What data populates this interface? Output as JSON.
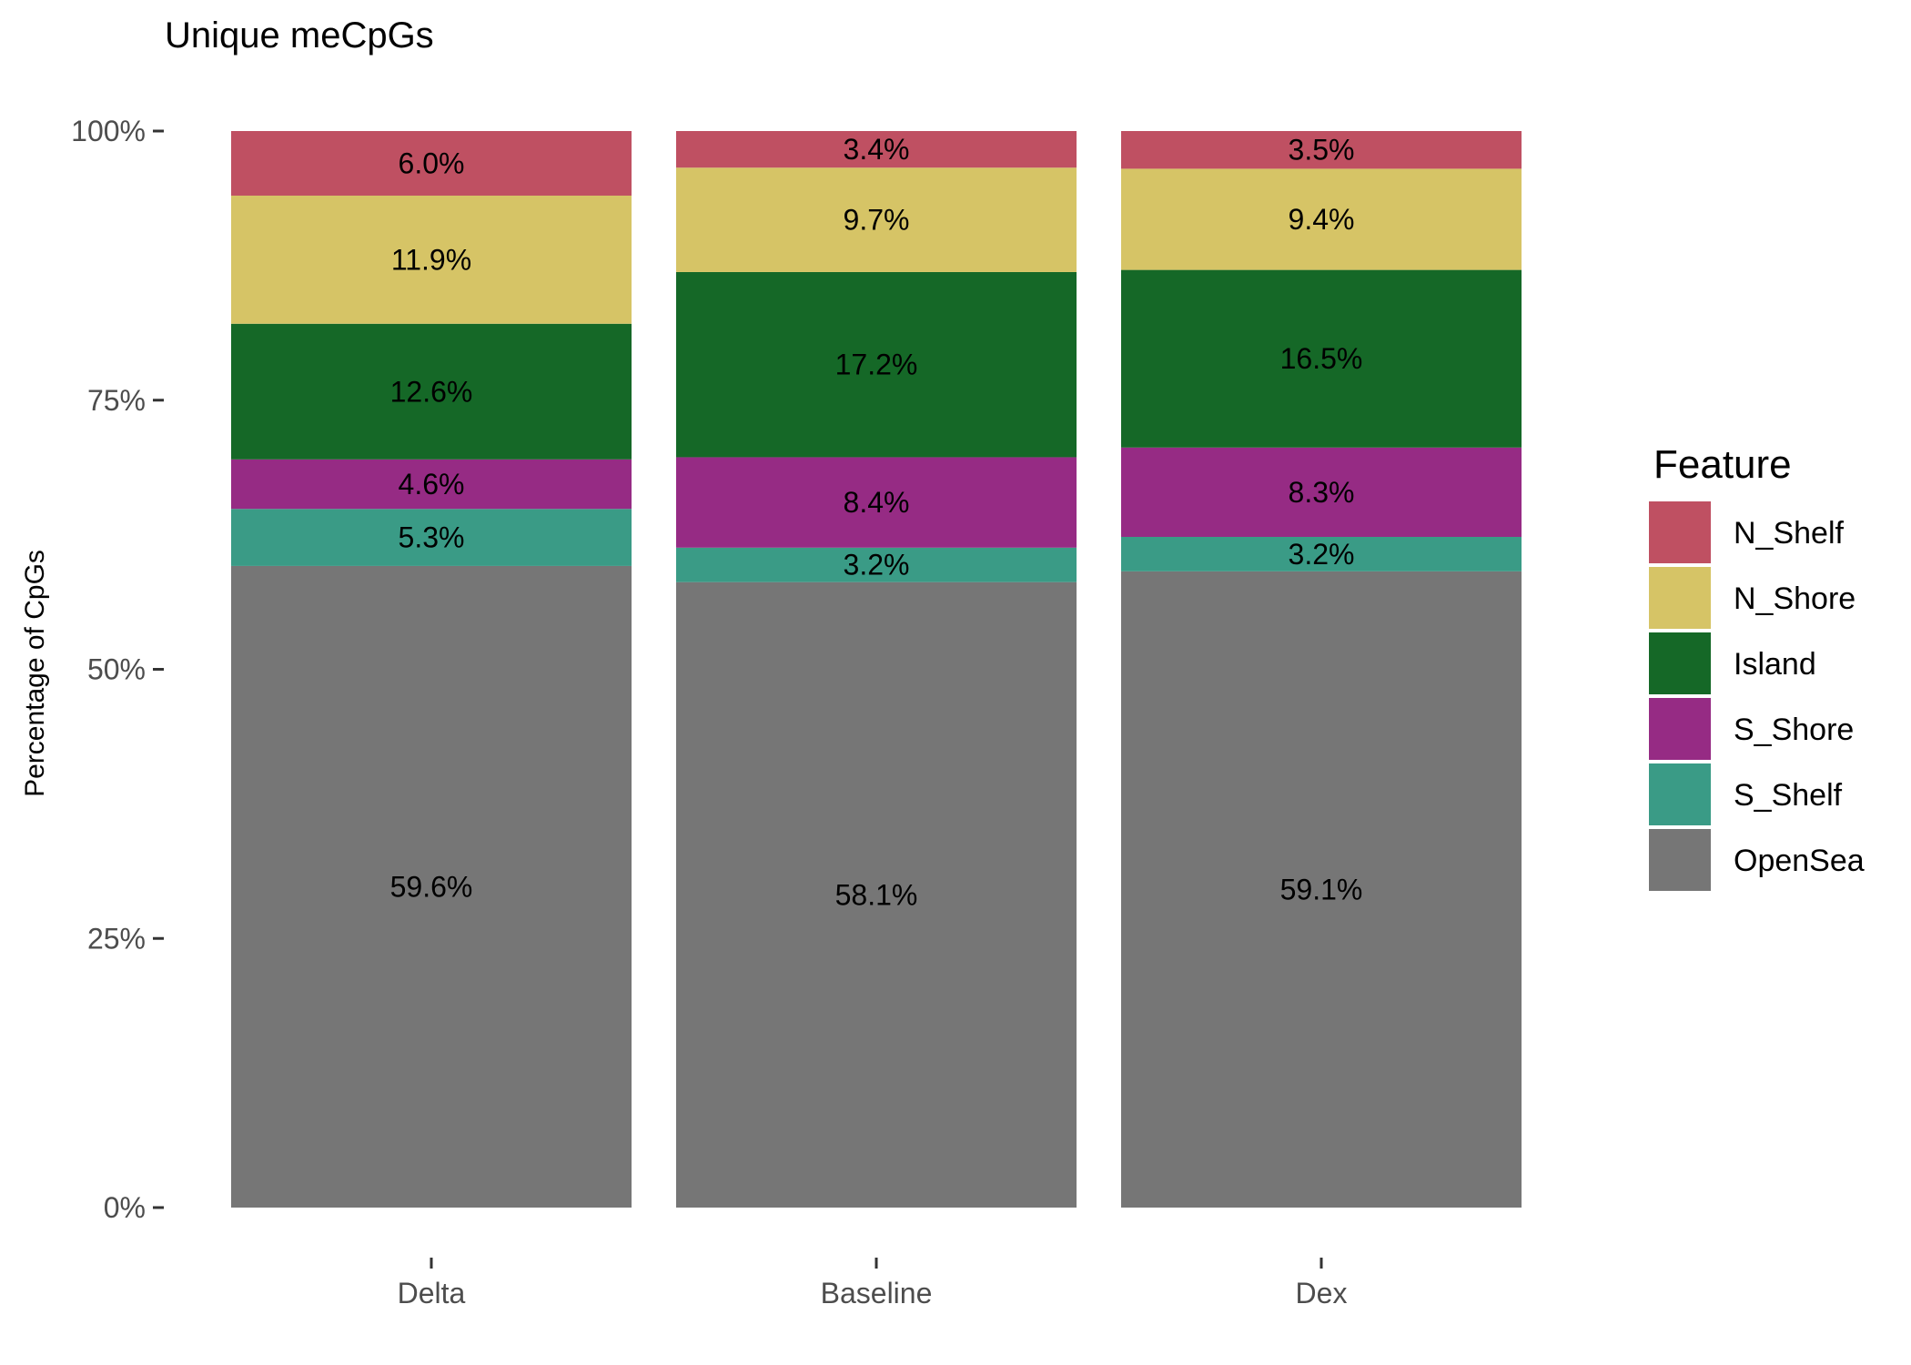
{
  "chart_data": {
    "type": "bar",
    "stacked": true,
    "title": "Unique meCpGs",
    "xlabel": "",
    "ylabel": "Percentage of CpGs",
    "ylim": [
      0,
      100
    ],
    "yticks": [
      "0%",
      "25%",
      "50%",
      "75%",
      "100%"
    ],
    "ytick_values": [
      0,
      25,
      50,
      75,
      100
    ],
    "categories": [
      "Delta",
      "Baseline",
      "Dex"
    ],
    "legend_title": "Feature",
    "legend_position": "right",
    "grid": false,
    "series": [
      {
        "name": "OpenSea",
        "color": "#767676",
        "values": [
          59.6,
          58.1,
          59.1
        ]
      },
      {
        "name": "S_Shelf",
        "color": "#3a9b86",
        "values": [
          5.3,
          3.2,
          3.2
        ]
      },
      {
        "name": "S_Shore",
        "color": "#962b84",
        "values": [
          4.6,
          8.4,
          8.3
        ]
      },
      {
        "name": "Island",
        "color": "#156827",
        "values": [
          12.6,
          17.2,
          16.5
        ]
      },
      {
        "name": "N_Shore",
        "color": "#d6c466",
        "values": [
          11.9,
          9.7,
          9.4
        ]
      },
      {
        "name": "N_Shelf",
        "color": "#bf5062",
        "values": [
          6.0,
          3.4,
          3.5
        ]
      }
    ],
    "legend_order": [
      "N_Shelf",
      "N_Shore",
      "Island",
      "S_Shore",
      "S_Shelf",
      "OpenSea"
    ]
  }
}
